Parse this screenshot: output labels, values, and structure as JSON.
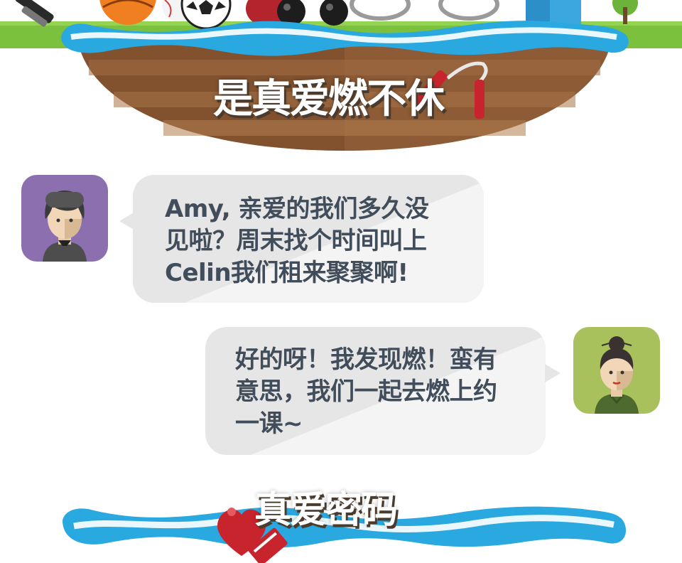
{
  "banner": {
    "title": "是真爱燃不休"
  },
  "chat": {
    "message_1": {
      "lines": [
        "Amy, 亲爱的我们多久没",
        "见啦？周末找个时间叫上",
        "Celin我们租来聚聚啊!"
      ]
    },
    "message_2": {
      "lines": [
        "好的呀！我发现燃！蛮有",
        "意思，我们一起去燃上约",
        "一课~"
      ]
    }
  },
  "section": {
    "title": "真爱密码"
  },
  "colors": {
    "bubble": "#e6e6e6",
    "text": "#414d5a",
    "ribbon": "#2aa8e0",
    "soil": "#8a5a35",
    "grass": "#7cc13e",
    "heart": "#c8242d"
  }
}
